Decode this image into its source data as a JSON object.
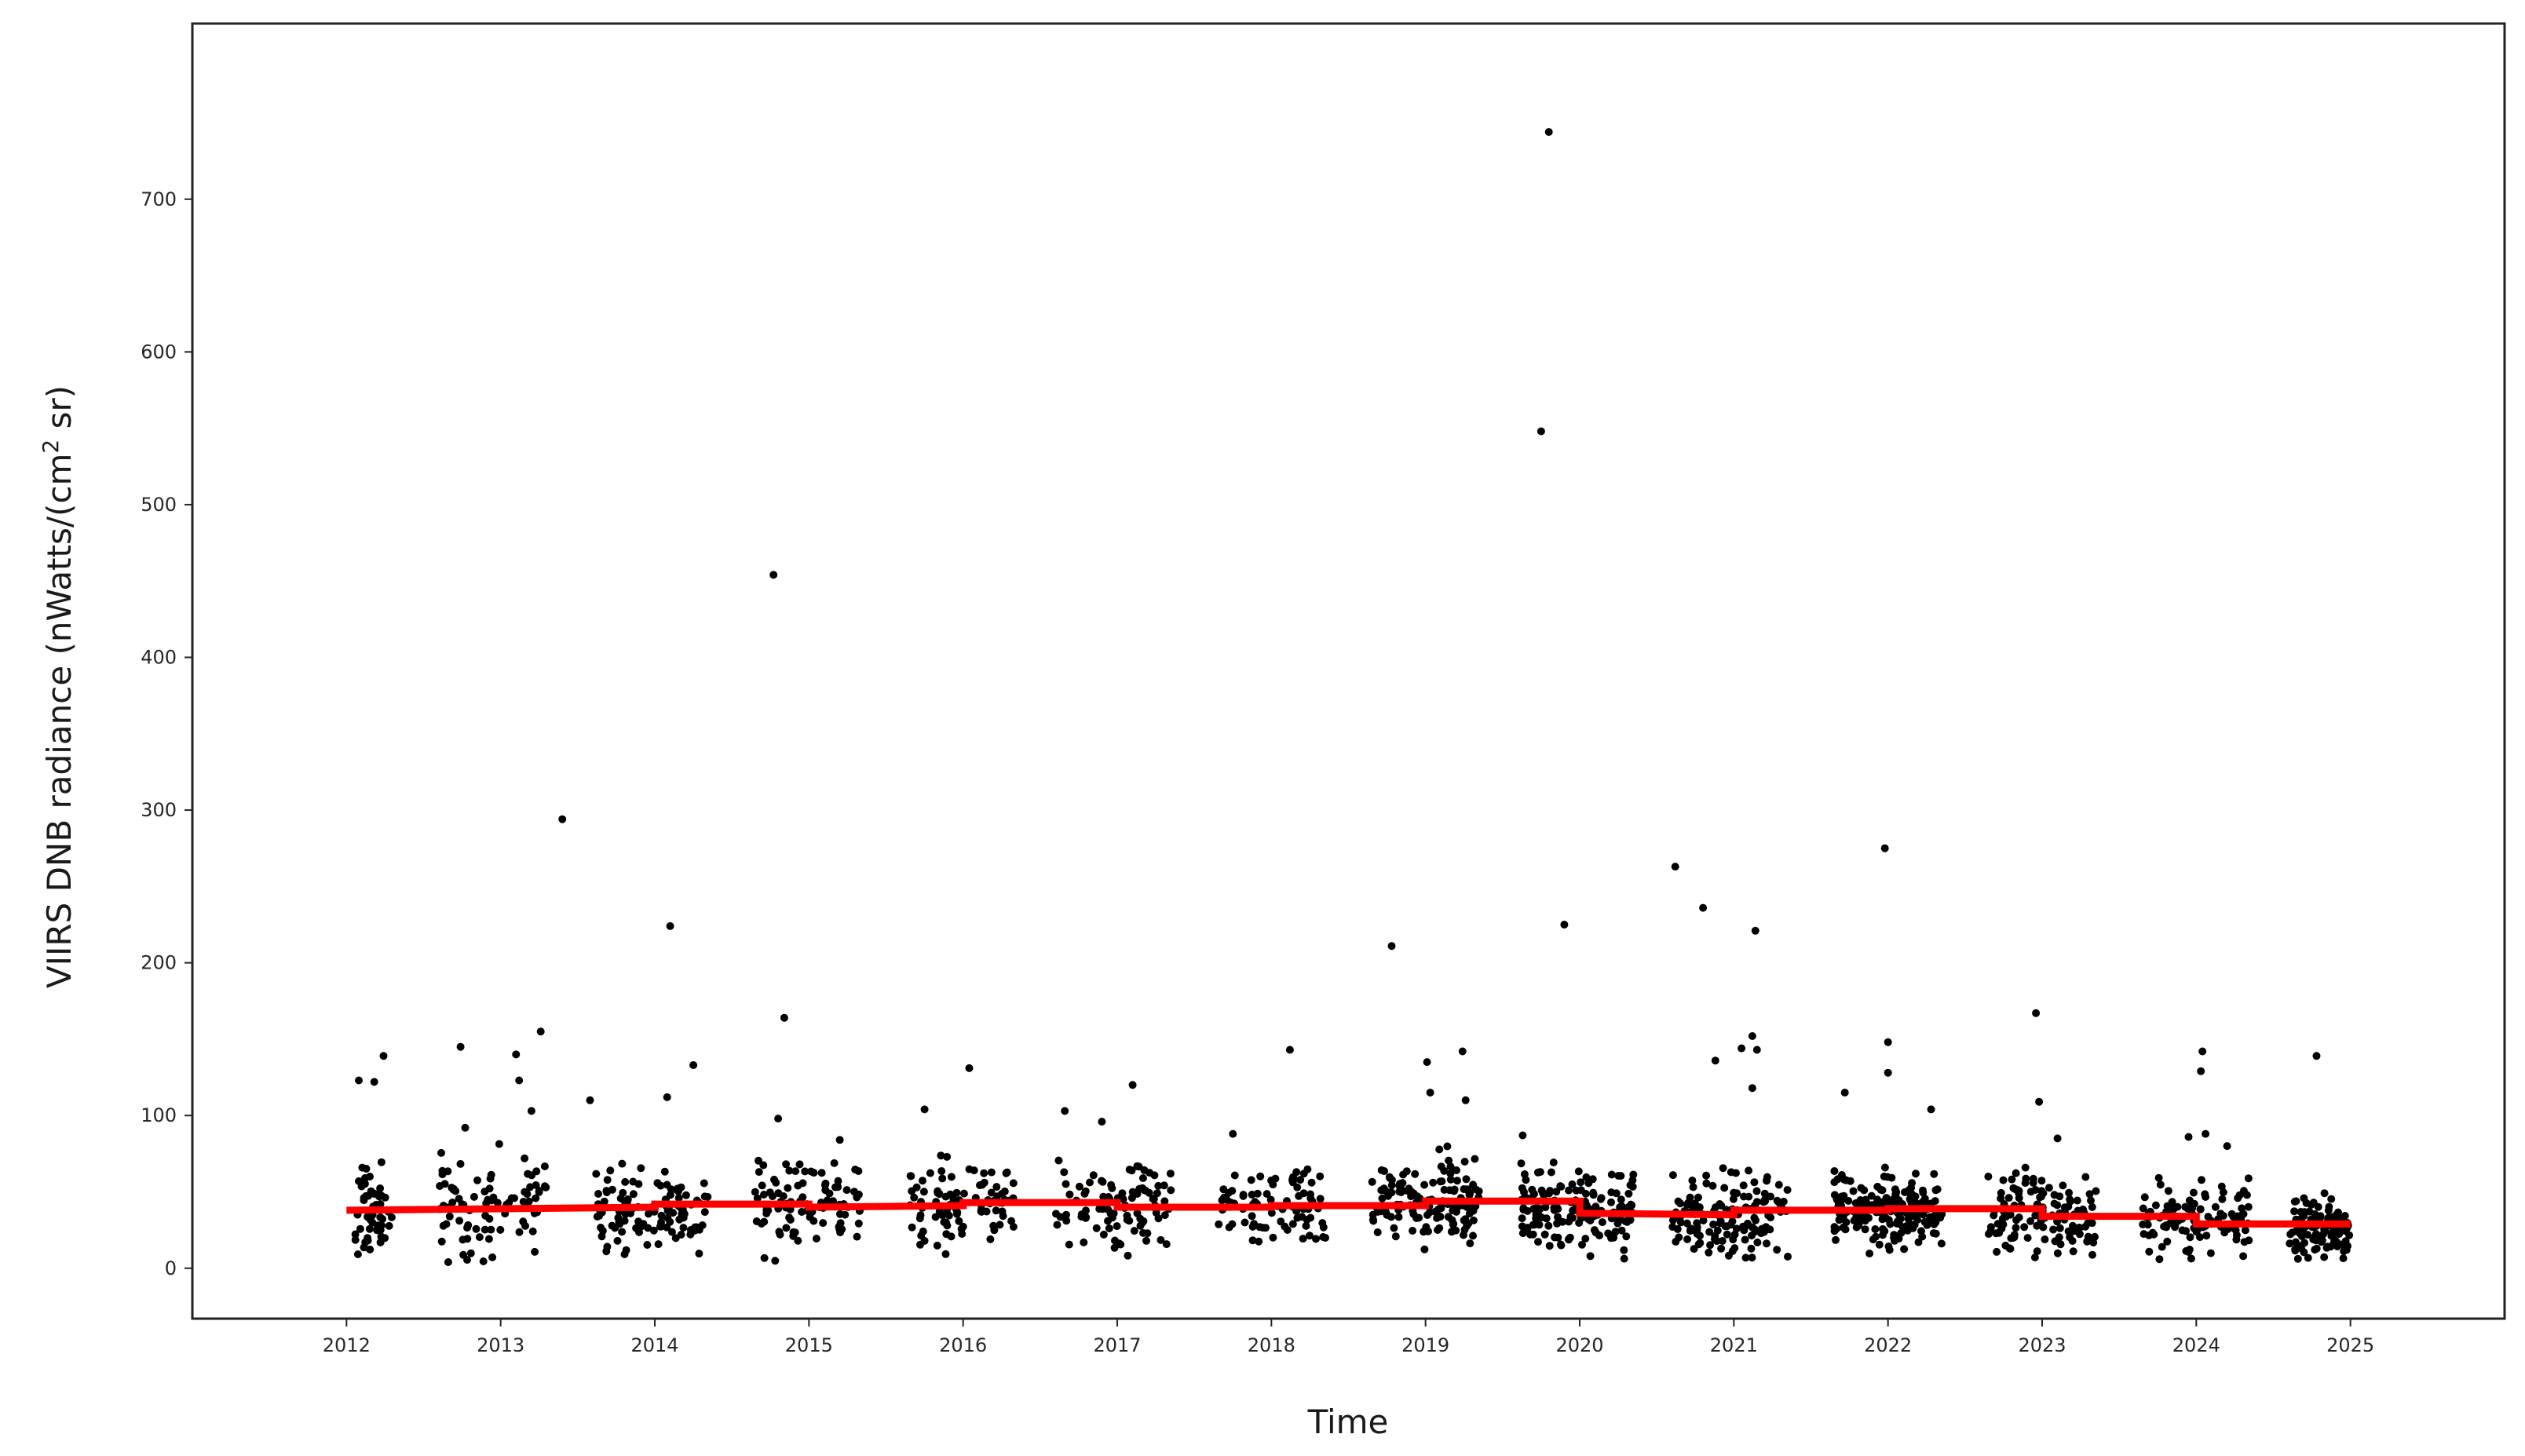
{
  "chart_data": {
    "type": "scatter",
    "xlabel": "Time",
    "ylabel": "VIIRS DNB radiance (nWatts/(cm",
    "ylabel_sup": "2",
    "ylabel_tail": " sr)",
    "xlim": [
      2011.0,
      2026.0
    ],
    "ylim": [
      -33,
      815
    ],
    "x_ticks": [
      2012,
      2013,
      2014,
      2015,
      2016,
      2017,
      2018,
      2019,
      2020,
      2021,
      2022,
      2023,
      2024,
      2025
    ],
    "y_ticks": [
      0,
      100,
      200,
      300,
      400,
      500,
      600,
      700
    ],
    "grid": false,
    "colors": {
      "points": "#000000",
      "trend": "#ff0000",
      "frame": "#222222"
    },
    "outliers": [
      {
        "x": 2012.08,
        "y": 123
      },
      {
        "x": 2012.18,
        "y": 122
      },
      {
        "x": 2012.24,
        "y": 139
      },
      {
        "x": 2012.66,
        "y": 4
      },
      {
        "x": 2012.74,
        "y": 145
      },
      {
        "x": 2012.77,
        "y": 92
      },
      {
        "x": 2013.1,
        "y": 140
      },
      {
        "x": 2013.12,
        "y": 123
      },
      {
        "x": 2013.2,
        "y": 103
      },
      {
        "x": 2013.26,
        "y": 155
      },
      {
        "x": 2013.4,
        "y": 294
      },
      {
        "x": 2013.58,
        "y": 110
      },
      {
        "x": 2014.1,
        "y": 224
      },
      {
        "x": 2014.08,
        "y": 112
      },
      {
        "x": 2014.25,
        "y": 133
      },
      {
        "x": 2014.77,
        "y": 454
      },
      {
        "x": 2014.8,
        "y": 98
      },
      {
        "x": 2014.84,
        "y": 164
      },
      {
        "x": 2015.2,
        "y": 84
      },
      {
        "x": 2015.75,
        "y": 104
      },
      {
        "x": 2016.04,
        "y": 131
      },
      {
        "x": 2016.66,
        "y": 103
      },
      {
        "x": 2016.9,
        "y": 96
      },
      {
        "x": 2017.1,
        "y": 120
      },
      {
        "x": 2017.75,
        "y": 88
      },
      {
        "x": 2018.12,
        "y": 143
      },
      {
        "x": 2018.78,
        "y": 211
      },
      {
        "x": 2019.01,
        "y": 135
      },
      {
        "x": 2019.03,
        "y": 115
      },
      {
        "x": 2019.24,
        "y": 142
      },
      {
        "x": 2019.26,
        "y": 110
      },
      {
        "x": 2019.63,
        "y": 87
      },
      {
        "x": 2019.75,
        "y": 548
      },
      {
        "x": 2019.8,
        "y": 744
      },
      {
        "x": 2019.9,
        "y": 225
      },
      {
        "x": 2020.62,
        "y": 263
      },
      {
        "x": 2020.8,
        "y": 236
      },
      {
        "x": 2020.88,
        "y": 136
      },
      {
        "x": 2021.12,
        "y": 152
      },
      {
        "x": 2021.05,
        "y": 144
      },
      {
        "x": 2021.15,
        "y": 143
      },
      {
        "x": 2021.14,
        "y": 221
      },
      {
        "x": 2021.12,
        "y": 118
      },
      {
        "x": 2021.72,
        "y": 115
      },
      {
        "x": 2021.98,
        "y": 275
      },
      {
        "x": 2022.0,
        "y": 148
      },
      {
        "x": 2022.0,
        "y": 128
      },
      {
        "x": 2022.28,
        "y": 104
      },
      {
        "x": 2022.96,
        "y": 167
      },
      {
        "x": 2022.98,
        "y": 109
      },
      {
        "x": 2023.1,
        "y": 85
      },
      {
        "x": 2023.95,
        "y": 86
      },
      {
        "x": 2024.04,
        "y": 142
      },
      {
        "x": 2024.03,
        "y": 129
      },
      {
        "x": 2024.06,
        "y": 88
      },
      {
        "x": 2024.2,
        "y": 80
      },
      {
        "x": 2024.78,
        "y": 139
      }
    ],
    "seasons": [
      {
        "x0": 2012.05,
        "x1": 2012.3,
        "mean": 35,
        "spread": 22,
        "n": 55
      },
      {
        "x0": 2012.6,
        "x1": 2013.3,
        "mean": 40,
        "spread": 22,
        "n": 85
      },
      {
        "x0": 2013.6,
        "x1": 2014.35,
        "mean": 37,
        "spread": 18,
        "n": 110
      },
      {
        "x0": 2014.65,
        "x1": 2015.35,
        "mean": 43,
        "spread": 20,
        "n": 95
      },
      {
        "x0": 2015.65,
        "x1": 2016.35,
        "mean": 42,
        "spread": 18,
        "n": 95
      },
      {
        "x0": 2016.6,
        "x1": 2017.35,
        "mean": 42,
        "spread": 20,
        "n": 95
      },
      {
        "x0": 2017.65,
        "x1": 2018.35,
        "mean": 39,
        "spread": 18,
        "n": 85
      },
      {
        "x0": 2018.65,
        "x1": 2019.35,
        "mean": 44,
        "spread": 20,
        "n": 150
      },
      {
        "x0": 2019.6,
        "x1": 2020.35,
        "mean": 38,
        "spread": 18,
        "n": 160
      },
      {
        "x0": 2020.6,
        "x1": 2021.35,
        "mean": 35,
        "spread": 18,
        "n": 140
      },
      {
        "x0": 2021.65,
        "x1": 2022.35,
        "mean": 38,
        "spread": 16,
        "n": 190
      },
      {
        "x0": 2022.65,
        "x1": 2023.35,
        "mean": 36,
        "spread": 18,
        "n": 130
      },
      {
        "x0": 2023.65,
        "x1": 2024.35,
        "mean": 32,
        "spread": 16,
        "n": 110
      },
      {
        "x0": 2024.6,
        "x1": 2025.0,
        "mean": 25,
        "spread": 14,
        "n": 110
      }
    ],
    "trend": [
      {
        "x": 2012.0,
        "y": 38
      },
      {
        "x": 2014.0,
        "y": 40
      },
      {
        "x": 2014.0,
        "y": 42
      },
      {
        "x": 2015.0,
        "y": 42
      },
      {
        "x": 2015.0,
        "y": 40
      },
      {
        "x": 2016.0,
        "y": 41
      },
      {
        "x": 2016.0,
        "y": 43
      },
      {
        "x": 2017.0,
        "y": 43
      },
      {
        "x": 2017.0,
        "y": 40
      },
      {
        "x": 2018.0,
        "y": 40
      },
      {
        "x": 2018.0,
        "y": 41
      },
      {
        "x": 2019.0,
        "y": 41
      },
      {
        "x": 2019.0,
        "y": 44
      },
      {
        "x": 2020.0,
        "y": 44
      },
      {
        "x": 2020.0,
        "y": 36
      },
      {
        "x": 2021.0,
        "y": 35
      },
      {
        "x": 2021.0,
        "y": 38
      },
      {
        "x": 2022.0,
        "y": 38
      },
      {
        "x": 2022.0,
        "y": 39
      },
      {
        "x": 2023.0,
        "y": 39
      },
      {
        "x": 2023.0,
        "y": 34
      },
      {
        "x": 2024.0,
        "y": 34
      },
      {
        "x": 2024.0,
        "y": 29
      },
      {
        "x": 2025.0,
        "y": 29
      }
    ]
  }
}
